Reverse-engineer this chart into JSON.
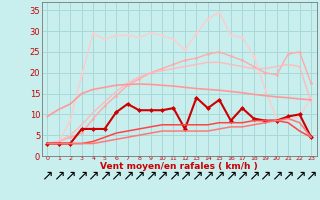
{
  "x": [
    0,
    1,
    2,
    3,
    4,
    5,
    6,
    7,
    8,
    9,
    10,
    11,
    12,
    13,
    14,
    15,
    16,
    17,
    18,
    19,
    20,
    21,
    22,
    23
  ],
  "bg_color": "#c8eeee",
  "grid_color": "#a8d8d8",
  "lines": [
    {
      "color": "#ffcccc",
      "lw": 1.0,
      "marker": "o",
      "ms": 2.0,
      "values": [
        3.0,
        3.5,
        8.5,
        19.5,
        29.5,
        28.0,
        29.0,
        29.0,
        28.5,
        29.5,
        29.0,
        28.0,
        25.5,
        29.5,
        33.0,
        34.5,
        29.0,
        28.5,
        24.0,
        16.0,
        9.0,
        8.5,
        9.5,
        14.0
      ]
    },
    {
      "color": "#ffaaaa",
      "lw": 1.0,
      "marker": "o",
      "ms": 2.0,
      "values": [
        3.0,
        3.5,
        4.5,
        5.5,
        9.0,
        12.0,
        14.5,
        17.0,
        18.5,
        20.0,
        21.0,
        22.0,
        23.0,
        23.5,
        24.5,
        25.0,
        24.0,
        23.0,
        21.5,
        20.0,
        19.5,
        24.5,
        25.0,
        17.5
      ]
    },
    {
      "color": "#ffbbbb",
      "lw": 1.0,
      "marker": null,
      "ms": 0,
      "values": [
        3.0,
        3.5,
        5.0,
        7.5,
        10.5,
        13.0,
        15.5,
        17.5,
        19.0,
        20.0,
        20.5,
        21.0,
        21.5,
        22.0,
        22.5,
        22.5,
        22.0,
        21.5,
        21.0,
        21.0,
        21.5,
        22.0,
        21.5,
        13.0
      ]
    },
    {
      "color": "#ff9999",
      "lw": 1.2,
      "marker": null,
      "ms": 0,
      "values": [
        9.5,
        11.2,
        12.5,
        15.0,
        16.0,
        16.5,
        17.0,
        17.2,
        17.3,
        17.2,
        17.0,
        16.8,
        16.5,
        16.2,
        16.0,
        15.8,
        15.5,
        15.2,
        14.8,
        14.5,
        14.2,
        14.0,
        13.7,
        13.5
      ]
    },
    {
      "color": "#cc0000",
      "lw": 1.5,
      "marker": "D",
      "ms": 2.5,
      "values": [
        3.0,
        3.0,
        3.0,
        6.5,
        6.5,
        6.5,
        10.5,
        12.5,
        11.0,
        11.0,
        11.0,
        11.5,
        6.5,
        14.0,
        11.5,
        13.5,
        8.5,
        11.5,
        9.0,
        8.5,
        8.5,
        9.5,
        10.0,
        4.5
      ]
    },
    {
      "color": "#ff4444",
      "lw": 1.1,
      "marker": null,
      "ms": 0,
      "values": [
        3.0,
        3.0,
        3.0,
        3.0,
        3.5,
        4.5,
        5.5,
        6.0,
        6.5,
        7.0,
        7.5,
        7.5,
        7.5,
        7.5,
        7.5,
        8.0,
        8.0,
        8.0,
        8.5,
        8.5,
        8.5,
        8.0,
        6.0,
        4.5
      ]
    },
    {
      "color": "#ff7777",
      "lw": 1.1,
      "marker": null,
      "ms": 0,
      "values": [
        3.0,
        3.0,
        3.0,
        3.0,
        3.0,
        3.5,
        4.0,
        4.5,
        5.0,
        5.5,
        6.0,
        6.0,
        6.0,
        6.0,
        6.0,
        6.5,
        7.0,
        7.0,
        7.5,
        8.0,
        8.5,
        9.0,
        8.0,
        4.5
      ]
    }
  ],
  "xlabel": "Vent moyen/en rafales ( km/h )",
  "yticks": [
    0,
    5,
    10,
    15,
    20,
    25,
    30,
    35
  ],
  "xticks": [
    0,
    1,
    2,
    3,
    4,
    5,
    6,
    7,
    8,
    9,
    10,
    11,
    12,
    13,
    14,
    15,
    16,
    17,
    18,
    19,
    20,
    21,
    22,
    23
  ],
  "xlim": [
    -0.5,
    23.5
  ],
  "ylim": [
    0,
    37
  ],
  "tick_color": "#cc0000",
  "label_color": "#cc0000",
  "arrow_char": "↗"
}
